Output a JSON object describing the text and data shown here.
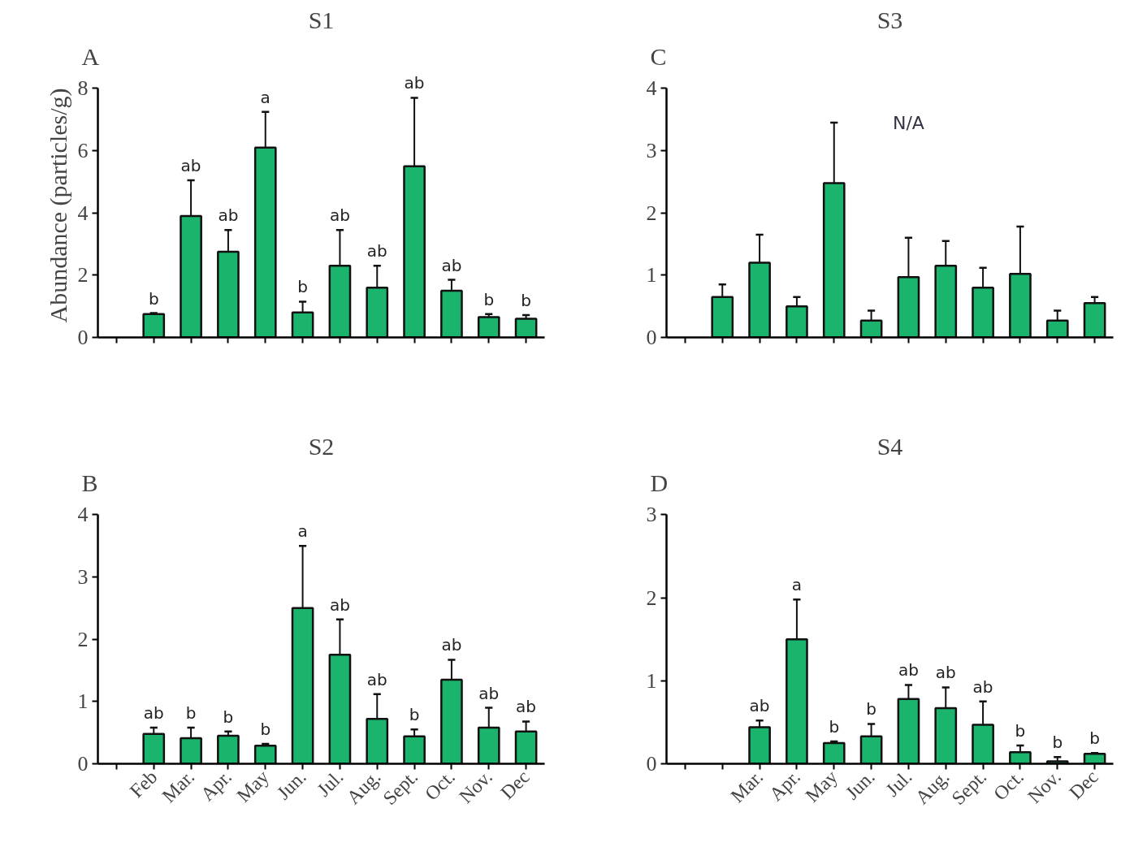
{
  "chart_data": [
    {
      "type": "bar",
      "title": "S1",
      "ylabel": "Abundance (particles/g)",
      "categories": [
        null,
        "Feb",
        "Mar.",
        "Apr.",
        "May",
        "Jun.",
        "Jul.",
        "Aug.",
        "Sept.",
        "Oct.",
        "Nov.",
        "Dec"
      ],
      "tick_labels": "y",
      "grid": false,
      "ylim": [
        0,
        8
      ],
      "yticks": [
        0,
        2,
        4,
        6,
        8
      ],
      "series": [
        {
          "color": "#1bb46c",
          "values": [
            null,
            0.75,
            3.9,
            2.75,
            6.1,
            0.8,
            2.3,
            1.6,
            5.5,
            1.5,
            0.65,
            0.6
          ],
          "errors": [
            null,
            [
              0.75,
              0.78
            ],
            [
              3.9,
              5.05
            ],
            [
              2.75,
              3.45
            ],
            [
              6.1,
              7.25
            ],
            [
              0.8,
              1.15
            ],
            [
              2.3,
              3.45
            ],
            [
              1.6,
              2.3
            ],
            [
              5.5,
              7.7
            ],
            [
              1.5,
              1.85
            ],
            [
              0.65,
              0.75
            ],
            [
              0.6,
              0.72
            ]
          ]
        }
      ],
      "annotations": [
        "A",
        {
          "text": "b",
          "x": "Feb",
          "y": 0.78
        },
        {
          "text": "ab",
          "x": "Mar.",
          "y": 5.05
        },
        {
          "text": "ab",
          "x": "Apr.",
          "y": 3.45
        },
        {
          "text": "a",
          "x": "May",
          "y": 7.25
        },
        {
          "text": "b",
          "x": "Jun.",
          "y": 1.15
        },
        {
          "text": "ab",
          "x": "Jul.",
          "y": 3.45
        },
        {
          "text": "ab",
          "x": "Aug.",
          "y": 2.3
        },
        {
          "text": "ab",
          "x": "Sept.",
          "y": 7.7
        },
        {
          "text": "ab",
          "x": "Oct.",
          "y": 1.85
        },
        {
          "text": "b",
          "x": "Nov.",
          "y": 0.75
        },
        {
          "text": "b",
          "x": "Dec",
          "y": 0.72
        }
      ]
    },
    {
      "type": "bar",
      "title": "S3",
      "categories": [
        null,
        "Feb",
        "Mar.",
        "Apr.",
        "May",
        "Jun.",
        "Jul.",
        "Aug.",
        "Sept.",
        "Oct.",
        "Nov.",
        "Dec"
      ],
      "tick_labels": "y",
      "grid": false,
      "ylim": [
        0,
        4
      ],
      "yticks": [
        0,
        1,
        2,
        3,
        4
      ],
      "series": [
        {
          "color": "#1bb46c",
          "values": [
            null,
            0.65,
            1.2,
            0.5,
            2.48,
            0.27,
            0.97,
            1.15,
            0.8,
            1.02,
            0.27,
            0.55
          ],
          "errors": [
            null,
            [
              0.65,
              0.85
            ],
            [
              1.2,
              1.65
            ],
            [
              0.5,
              0.65
            ],
            [
              2.48,
              3.45
            ],
            [
              0.27,
              0.43
            ],
            [
              0.97,
              1.6
            ],
            [
              1.15,
              1.55
            ],
            [
              0.8,
              1.12
            ],
            [
              1.02,
              1.78
            ],
            [
              0.27,
              0.43
            ],
            [
              0.55,
              0.65
            ]
          ]
        }
      ],
      "annotations": [
        "C",
        "N/A"
      ]
    },
    {
      "type": "bar",
      "title": "S2",
      "categories": [
        null,
        "Feb",
        "Mar.",
        "Apr.",
        "May",
        "Jun.",
        "Jul.",
        "Aug.",
        "Sept.",
        "Oct.",
        "Nov.",
        "Dec"
      ],
      "grid": false,
      "ylim": [
        0,
        4
      ],
      "yticks": [
        0,
        1,
        2,
        3,
        4
      ],
      "series": [
        {
          "color": "#1bb46c",
          "values": [
            null,
            0.48,
            0.41,
            0.45,
            0.29,
            2.5,
            1.75,
            0.72,
            0.44,
            1.35,
            0.58,
            0.52
          ],
          "errors": [
            null,
            [
              0.48,
              0.58
            ],
            [
              0.41,
              0.58
            ],
            [
              0.45,
              0.52
            ],
            [
              0.29,
              0.32
            ],
            [
              2.5,
              3.5
            ],
            [
              1.75,
              2.32
            ],
            [
              0.72,
              1.12
            ],
            [
              0.44,
              0.55
            ],
            [
              1.35,
              1.67
            ],
            [
              0.58,
              0.9
            ],
            [
              0.52,
              0.68
            ]
          ]
        }
      ],
      "annotations": [
        "B",
        {
          "text": "ab",
          "x": "Feb",
          "y": 0.58
        },
        {
          "text": "b",
          "x": "Mar.",
          "y": 0.58
        },
        {
          "text": "b",
          "x": "Apr.",
          "y": 0.52
        },
        {
          "text": "b",
          "x": "May",
          "y": 0.32
        },
        {
          "text": "a",
          "x": "Jun.",
          "y": 3.5
        },
        {
          "text": "ab",
          "x": "Jul.",
          "y": 2.32
        },
        {
          "text": "ab",
          "x": "Aug.",
          "y": 1.12
        },
        {
          "text": "b",
          "x": "Sept.",
          "y": 0.55
        },
        {
          "text": "ab",
          "x": "Oct.",
          "y": 1.67
        },
        {
          "text": "ab",
          "x": "Nov.",
          "y": 0.9
        },
        {
          "text": "ab",
          "x": "Dec",
          "y": 0.68
        }
      ]
    },
    {
      "type": "bar",
      "title": "S4",
      "categories": [
        null,
        null,
        "Mar.",
        "Apr.",
        "May",
        "Jun.",
        "Jul.",
        "Aug.",
        "Sept.",
        "Oct.",
        "Nov.",
        "Dec"
      ],
      "grid": false,
      "ylim": [
        0,
        3
      ],
      "yticks": [
        0,
        1,
        2,
        3
      ],
      "series": [
        {
          "color": "#1bb46c",
          "values": [
            null,
            null,
            0.44,
            1.5,
            0.25,
            0.33,
            0.78,
            0.67,
            0.47,
            0.14,
            0.03,
            0.12
          ],
          "errors": [
            null,
            null,
            [
              0.44,
              0.52
            ],
            [
              1.5,
              1.98
            ],
            [
              0.25,
              0.27
            ],
            [
              0.33,
              0.48
            ],
            [
              0.78,
              0.95
            ],
            [
              0.67,
              0.92
            ],
            [
              0.47,
              0.75
            ],
            [
              0.14,
              0.22
            ],
            [
              0.03,
              0.08
            ],
            [
              0.12,
              0.13
            ]
          ]
        }
      ],
      "annotations": [
        "D",
        {
          "text": "ab",
          "x": "Mar.",
          "y": 0.52
        },
        {
          "text": "a",
          "x": "Apr.",
          "y": 1.98
        },
        {
          "text": "b",
          "x": "May",
          "y": 0.27
        },
        {
          "text": "b",
          "x": "Jun.",
          "y": 0.48
        },
        {
          "text": "ab",
          "x": "Jul.",
          "y": 0.95
        },
        {
          "text": "ab",
          "x": "Aug.",
          "y": 0.92
        },
        {
          "text": "ab",
          "x": "Sept.",
          "y": 0.75
        },
        {
          "text": "b",
          "x": "Oct.",
          "y": 0.22
        },
        {
          "text": "b",
          "x": "Nov.",
          "y": 0.08
        },
        {
          "text": "b",
          "x": "Dec",
          "y": 0.13
        }
      ]
    }
  ]
}
